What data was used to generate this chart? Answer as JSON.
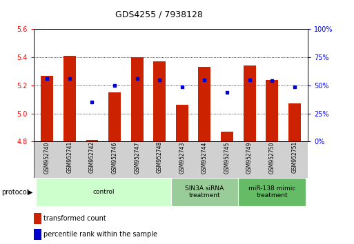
{
  "title": "GDS4255 / 7938128",
  "samples": [
    "GSM952740",
    "GSM952741",
    "GSM952742",
    "GSM952746",
    "GSM952747",
    "GSM952748",
    "GSM952743",
    "GSM952744",
    "GSM952745",
    "GSM952749",
    "GSM952750",
    "GSM952751"
  ],
  "red_values": [
    5.27,
    5.41,
    4.81,
    5.15,
    5.4,
    5.37,
    5.06,
    5.33,
    4.87,
    5.34,
    5.24,
    5.07
  ],
  "blue_percentiles": [
    56,
    56,
    35,
    50,
    56,
    55,
    49,
    55,
    44,
    55,
    54,
    49
  ],
  "y_min": 4.8,
  "y_max": 5.6,
  "y_ticks_left": [
    4.8,
    5.0,
    5.2,
    5.4,
    5.6
  ],
  "y_ticks_right_labels": [
    "0%",
    "25%",
    "50%",
    "75%",
    "100%"
  ],
  "y_ticks_right_vals": [
    0,
    25,
    50,
    75,
    100
  ],
  "bar_color": "#CC2200",
  "dot_color": "#0000CC",
  "bar_width": 0.55,
  "group_colors": [
    "#CCFFCC",
    "#99CC99",
    "#66BB66"
  ],
  "group_labels": [
    "control",
    "SIN3A siRNA\ntreatment",
    "miR-138 mimic\ntreatment"
  ],
  "group_starts": [
    0,
    6,
    9
  ],
  "group_ends": [
    6,
    9,
    12
  ],
  "legend_red": "transformed count",
  "legend_blue": "percentile rank within the sample",
  "protocol_label": "protocol"
}
